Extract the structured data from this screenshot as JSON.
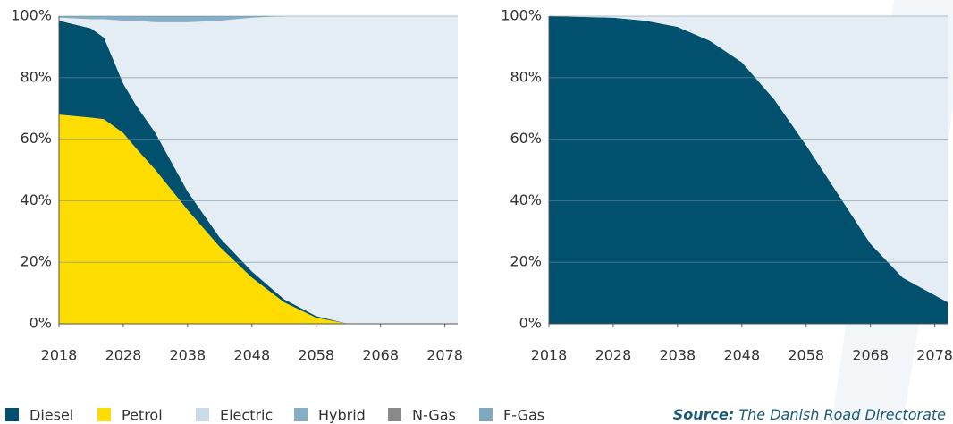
{
  "chart_data": [
    {
      "type": "area",
      "x": [
        2018,
        2023,
        2025,
        2028,
        2030,
        2033,
        2038,
        2043,
        2048,
        2053,
        2058,
        2063,
        2068,
        2073,
        2080
      ],
      "series": [
        {
          "name": "Petrol",
          "color": "#ffdc00",
          "values": [
            68,
            67,
            66.5,
            62,
            57,
            50,
            37,
            25,
            15,
            7,
            2,
            0,
            0,
            0,
            0
          ]
        },
        {
          "name": "Diesel",
          "color": "#00506e",
          "values": [
            30.5,
            29,
            26.5,
            16,
            14,
            12,
            6,
            3,
            2,
            1,
            0.5,
            0,
            0,
            0,
            0
          ]
        },
        {
          "name": "Electric",
          "color": "#e4edf4",
          "values": [
            1,
            3,
            6,
            20.5,
            27.5,
            36,
            55,
            70.5,
            82.5,
            92,
            97.5,
            100,
            100,
            100,
            100
          ]
        },
        {
          "name": "Hybrid",
          "color": "#86aec6",
          "values": [
            0.5,
            1,
            1,
            1.5,
            1.5,
            2,
            2,
            1.5,
            0.5,
            0,
            0,
            0,
            0,
            0,
            0
          ]
        }
      ],
      "xlim": [
        2018,
        2080
      ],
      "ylim": [
        0,
        100
      ],
      "xticks": [
        2018,
        2028,
        2038,
        2048,
        2058,
        2068,
        2078
      ],
      "yticks": [
        {
          "value": 0,
          "label": "0%"
        },
        {
          "value": 20,
          "label": "20%"
        },
        {
          "value": 40,
          "label": "40%"
        },
        {
          "value": 60,
          "label": "60%"
        },
        {
          "value": 80,
          "label": "80%"
        },
        {
          "value": 100,
          "label": "100%"
        }
      ],
      "grid": true
    },
    {
      "type": "area",
      "x": [
        2018,
        2028,
        2033,
        2038,
        2043,
        2048,
        2053,
        2058,
        2063,
        2068,
        2073,
        2080
      ],
      "series": [
        {
          "name": "Diesel",
          "color": "#00506e",
          "values": [
            100,
            99.5,
            98.5,
            96.5,
            92,
            85,
            73,
            58,
            42,
            26,
            15,
            7
          ]
        },
        {
          "name": "Electric",
          "color": "#e4edf4",
          "values": [
            0,
            0.5,
            1.5,
            3.5,
            8,
            15,
            27,
            42,
            58,
            74,
            85,
            93
          ]
        }
      ],
      "xlim": [
        2018,
        2080
      ],
      "ylim": [
        0,
        100
      ],
      "xticks": [
        2018,
        2028,
        2038,
        2048,
        2058,
        2068,
        2078
      ],
      "yticks": [
        {
          "value": 0,
          "label": "0%"
        },
        {
          "value": 20,
          "label": "20%"
        },
        {
          "value": 40,
          "label": "40%"
        },
        {
          "value": 60,
          "label": "60%"
        },
        {
          "value": 80,
          "label": "80%"
        },
        {
          "value": 100,
          "label": "100%"
        }
      ],
      "grid": true
    }
  ],
  "legend": [
    {
      "name": "Diesel",
      "color": "#00506e"
    },
    {
      "name": "Petrol",
      "color": "#ffdc00"
    },
    {
      "name": "Electric",
      "color": "#c9dbe6"
    },
    {
      "name": "Hybrid",
      "color": "#86aec6"
    },
    {
      "name": "N-Gas",
      "color": "#8a8a8a"
    },
    {
      "name": "F-Gas",
      "color": "#80a8c0"
    }
  ],
  "source": {
    "label": "Source:",
    "text": "The Danish Road Directorate"
  }
}
